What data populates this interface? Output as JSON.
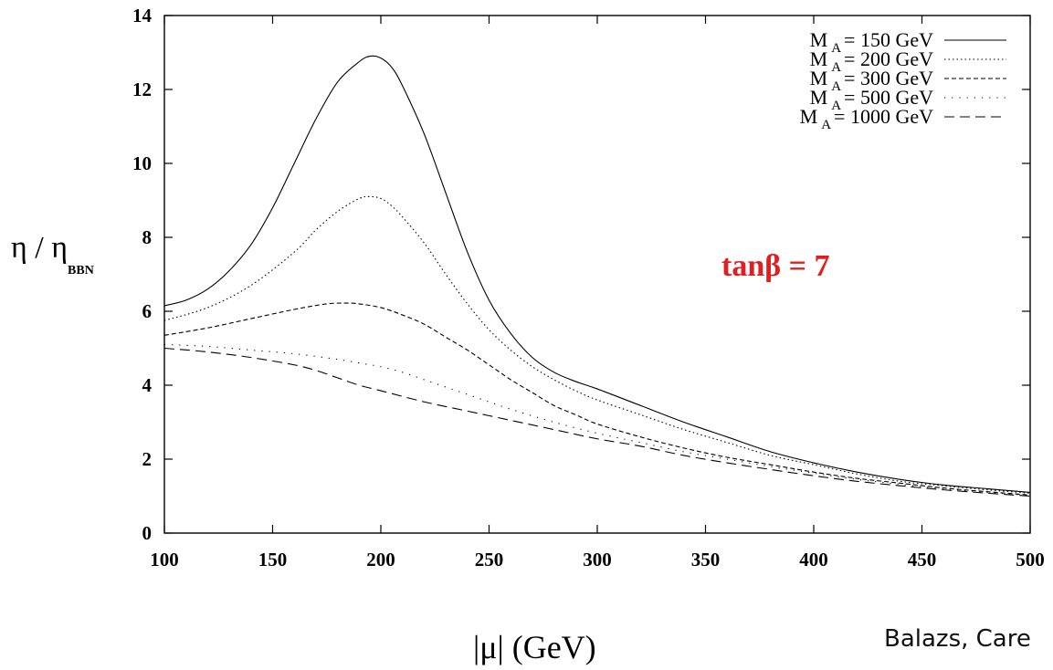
{
  "chart_data": {
    "type": "line",
    "x_ticks": [
      "100",
      "150",
      "200",
      "250",
      "300",
      "350",
      "400",
      "450",
      "500"
    ],
    "y_ticks": [
      "0",
      "2",
      "4",
      "6",
      "8",
      "10",
      "12",
      "14"
    ],
    "xlim": [
      100,
      500
    ],
    "ylim": [
      0,
      14
    ],
    "xlabel": "|μ|  (GeV)",
    "ylabel": {
      "main": "η / η",
      "sub": "BBN"
    },
    "annotation": {
      "text": "tanβ = 7",
      "color": "#e02020"
    },
    "credit": "Balazs, Care",
    "grid": false,
    "legend_position": "top-right",
    "series": [
      {
        "name": {
          "m": "M",
          "sub": "A",
          "rest": "= 150 GeV"
        },
        "dash": "solid",
        "x": [
          100,
          110,
          120,
          130,
          140,
          150,
          160,
          170,
          180,
          190,
          195,
          200,
          205,
          210,
          220,
          230,
          240,
          250,
          260,
          270,
          280,
          290,
          300,
          320,
          340,
          360,
          380,
          400,
          420,
          440,
          460,
          480,
          500
        ],
        "y": [
          6.15,
          6.3,
          6.6,
          7.1,
          7.8,
          8.8,
          10.0,
          11.2,
          12.2,
          12.75,
          12.9,
          12.85,
          12.6,
          12.1,
          10.8,
          9.2,
          7.6,
          6.3,
          5.4,
          4.75,
          4.35,
          4.1,
          3.9,
          3.45,
          3.0,
          2.6,
          2.2,
          1.9,
          1.65,
          1.45,
          1.3,
          1.2,
          1.1
        ]
      },
      {
        "name": {
          "m": "M",
          "sub": "A",
          "rest": "= 200 GeV"
        },
        "dash": "dotted",
        "x": [
          100,
          120,
          140,
          160,
          170,
          180,
          190,
          195,
          200,
          205,
          210,
          220,
          230,
          240,
          250,
          260,
          270,
          280,
          290,
          300,
          320,
          340,
          360,
          380,
          400,
          420,
          440,
          460,
          480,
          500
        ],
        "y": [
          5.75,
          6.1,
          6.7,
          7.6,
          8.2,
          8.7,
          9.05,
          9.1,
          9.05,
          8.85,
          8.55,
          7.85,
          7.0,
          6.2,
          5.5,
          4.95,
          4.5,
          4.15,
          3.85,
          3.6,
          3.2,
          2.8,
          2.45,
          2.1,
          1.85,
          1.6,
          1.4,
          1.28,
          1.17,
          1.08
        ]
      },
      {
        "name": {
          "m": "M",
          "sub": "A",
          "rest": "= 300 GeV"
        },
        "dash": "dashed",
        "x": [
          100,
          120,
          140,
          160,
          175,
          185,
          190,
          200,
          210,
          220,
          230,
          240,
          250,
          260,
          270,
          280,
          290,
          300,
          320,
          340,
          360,
          380,
          400,
          420,
          440,
          460,
          480,
          500
        ],
        "y": [
          5.35,
          5.55,
          5.8,
          6.05,
          6.2,
          6.22,
          6.2,
          6.1,
          5.9,
          5.65,
          5.3,
          4.95,
          4.55,
          4.15,
          3.8,
          3.45,
          3.2,
          2.95,
          2.6,
          2.3,
          2.05,
          1.85,
          1.65,
          1.48,
          1.35,
          1.22,
          1.12,
          1.03
        ]
      },
      {
        "name": {
          "m": "M",
          "sub": "A",
          "rest": "= 500 GeV"
        },
        "dash": "sparse",
        "x": [
          100,
          120,
          140,
          160,
          180,
          190,
          200,
          210,
          220,
          230,
          240,
          250,
          260,
          280,
          300,
          320,
          340,
          360,
          380,
          400,
          420,
          440,
          460,
          480,
          500
        ],
        "y": [
          5.1,
          5.05,
          4.95,
          4.85,
          4.7,
          4.6,
          4.5,
          4.35,
          4.15,
          3.95,
          3.75,
          3.55,
          3.35,
          3.0,
          2.7,
          2.45,
          2.2,
          2.0,
          1.8,
          1.62,
          1.45,
          1.32,
          1.2,
          1.1,
          1.02
        ]
      },
      {
        "name": {
          "m": "M",
          "sub": "A",
          "rest": "= 1000 GeV"
        },
        "dash": "longdash",
        "x": [
          100,
          120,
          140,
          160,
          170,
          180,
          190,
          200,
          220,
          240,
          260,
          280,
          300,
          320,
          340,
          360,
          380,
          400,
          420,
          440,
          460,
          480,
          500
        ],
        "y": [
          5.0,
          4.9,
          4.75,
          4.55,
          4.4,
          4.2,
          4.0,
          3.85,
          3.55,
          3.3,
          3.05,
          2.8,
          2.55,
          2.35,
          2.1,
          1.9,
          1.72,
          1.55,
          1.4,
          1.28,
          1.17,
          1.08,
          1.0
        ]
      }
    ]
  }
}
